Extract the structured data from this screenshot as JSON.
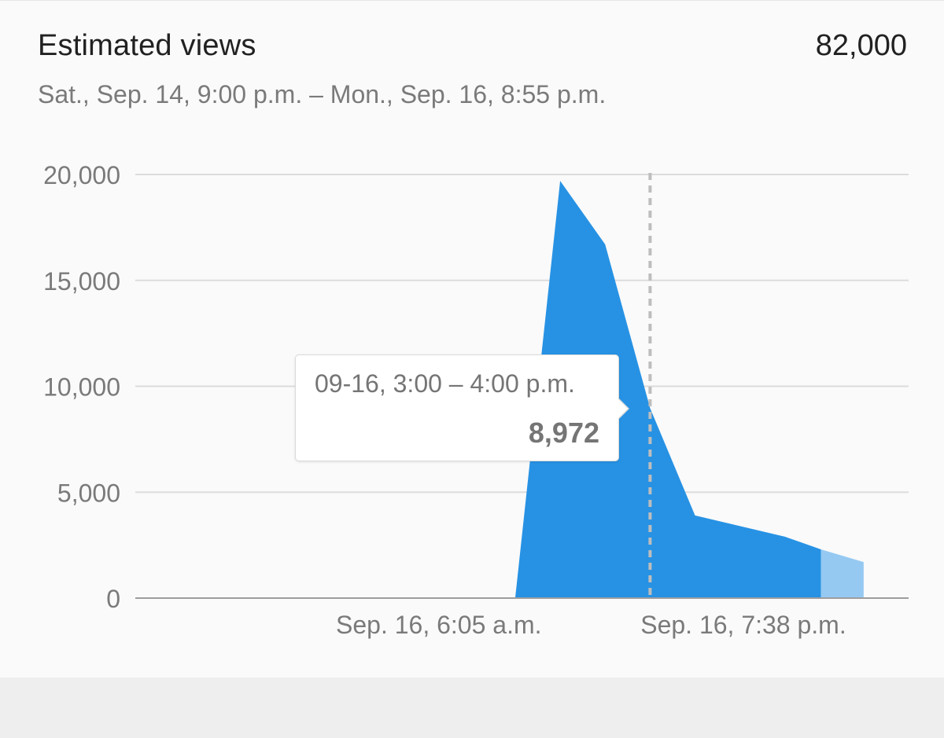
{
  "header": {
    "title": "Estimated views",
    "total": "82,000",
    "date_range": "Sat., Sep. 14, 9:00 p.m. – Mon., Sep. 16, 8:55 p.m."
  },
  "tooltip": {
    "range": "09-16, 3:00 – 4:00 p.m.",
    "value": "8,972"
  },
  "colors": {
    "area": "#2792e4",
    "area_partial": "#95c9f2",
    "grid": "#dcdcdc",
    "axis": "#9e9e9e",
    "text": "#212121",
    "muted": "#7a7a7a"
  },
  "chart_data": {
    "type": "area",
    "title": "Estimated views",
    "y_ticks": [
      "20,000",
      "15,000",
      "10,000",
      "5,000",
      "0"
    ],
    "y_tick_values": [
      20000,
      15000,
      10000,
      5000,
      0
    ],
    "ylim": [
      0,
      20000
    ],
    "x_tick_labels": [
      "Sep. 16, 6:05 a.m.",
      "Sep. 16, 7:38 p.m."
    ],
    "x_unit": "hours after Sep. 16, 6:05 a.m.",
    "xlim": [
      -13.5,
      20.9
    ],
    "x_tick_values": [
      0,
      13.55
    ],
    "hover_x": 9.4,
    "partial_after_x": 17.0,
    "points": [
      {
        "x": -13.5,
        "y": 0
      },
      {
        "x": 3.4,
        "y": 0
      },
      {
        "x": 5.4,
        "y": 19700
      },
      {
        "x": 7.4,
        "y": 16700
      },
      {
        "x": 9.4,
        "y": 8972
      },
      {
        "x": 11.4,
        "y": 3900
      },
      {
        "x": 13.4,
        "y": 3400
      },
      {
        "x": 15.4,
        "y": 2900
      },
      {
        "x": 17.0,
        "y": 2300
      },
      {
        "x": 18.9,
        "y": 1700
      }
    ],
    "grid": true,
    "legend": "none"
  }
}
